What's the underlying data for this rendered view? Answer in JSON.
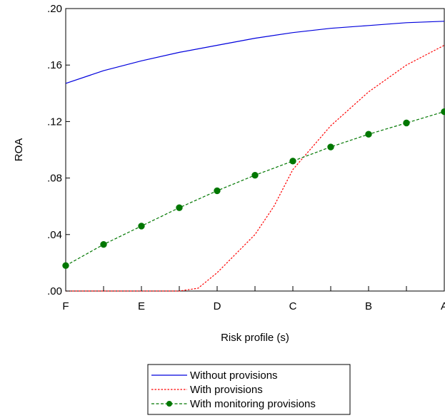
{
  "chart_data": {
    "type": "line",
    "title": "",
    "xlabel": "Risk profile (s)",
    "ylabel": "ROA",
    "x_tick_labels": [
      "F",
      "E",
      "D",
      "C",
      "B",
      "A"
    ],
    "xlim": [
      0,
      10
    ],
    "ylim": [
      0,
      0.2
    ],
    "y_ticks": [
      0,
      0.04,
      0.08,
      0.12,
      0.16,
      0.2
    ],
    "y_tick_labels": [
      ".00",
      ".04",
      ".08",
      ".12",
      ".16",
      ".20"
    ],
    "grid": false,
    "legend_position": "bottom-center",
    "series": [
      {
        "name": "Without provisions",
        "color": "#0000dd",
        "style": "solid",
        "x": [
          0,
          1,
          2,
          3,
          4,
          5,
          6,
          7,
          8,
          9,
          10
        ],
        "y": [
          0.147,
          0.156,
          0.163,
          0.169,
          0.174,
          0.179,
          0.183,
          0.186,
          0.188,
          0.19,
          0.191
        ]
      },
      {
        "name": "With provisions",
        "color": "#ff0000",
        "style": "dotted",
        "x": [
          0,
          1,
          2,
          3,
          3.5,
          4,
          5,
          5.5,
          6,
          7,
          8,
          9,
          10
        ],
        "y": [
          0,
          0,
          0,
          0,
          0.002,
          0.013,
          0.04,
          0.06,
          0.086,
          0.117,
          0.141,
          0.16,
          0.174
        ]
      },
      {
        "name": "With monitoring provisions",
        "color": "#007700",
        "style": "dashed-markers",
        "x": [
          0,
          1,
          2,
          3,
          4,
          5,
          6,
          7,
          8,
          9,
          10
        ],
        "y": [
          0.018,
          0.033,
          0.046,
          0.059,
          0.071,
          0.082,
          0.092,
          0.102,
          0.111,
          0.119,
          0.127
        ]
      }
    ]
  }
}
